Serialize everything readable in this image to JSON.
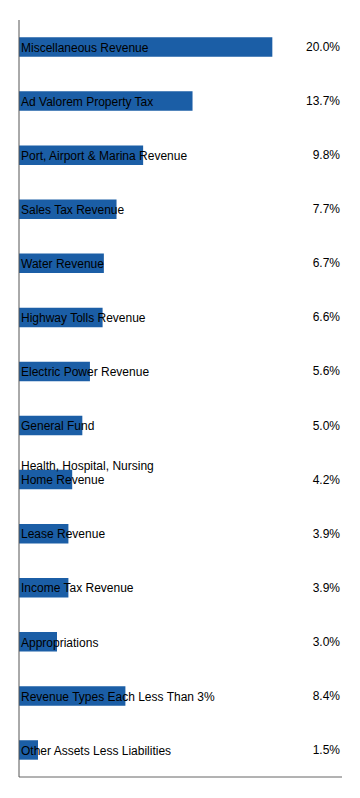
{
  "chart_data": {
    "type": "bar",
    "orientation": "horizontal",
    "categories": [
      "Miscellaneous Revenue",
      "Ad Valorem Property Tax",
      "Port, Airport & Marina Revenue",
      "Sales Tax Revenue",
      "Water Revenue",
      "Highway Tolls Revenue",
      "Electric Power Revenue",
      "General Fund",
      "Health, Hospital, Nursing\nHome Revenue",
      "Lease Revenue",
      "Income Tax Revenue",
      "Appropriations",
      "Revenue Types Each Less Than 3%",
      "Other Assets Less Liabilities"
    ],
    "values": [
      20.0,
      13.7,
      9.8,
      7.7,
      6.7,
      6.6,
      5.6,
      5.0,
      4.2,
      3.9,
      3.9,
      3.0,
      8.4,
      1.5
    ],
    "value_labels": [
      "20.0%",
      "13.7%",
      "9.8%",
      "7.7%",
      "6.7%",
      "6.6%",
      "5.6%",
      "5.0%",
      "4.2%",
      "3.9%",
      "3.9%",
      "3.0%",
      "8.4%",
      "1.5%"
    ],
    "data_labels": true,
    "color": "#1B5EA6",
    "xlim": [
      0,
      25.5
    ],
    "tick_labels": false,
    "grid": false
  }
}
